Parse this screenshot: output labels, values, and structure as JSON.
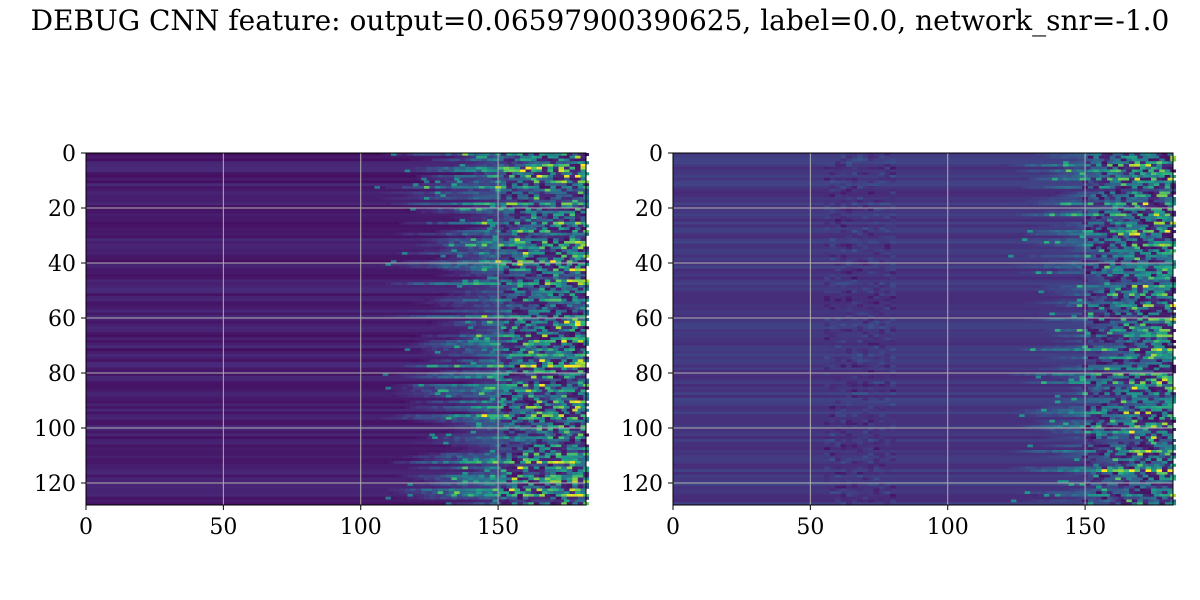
{
  "figure": {
    "title": "DEBUG CNN feature: output=0.06597900390625, label=0.0, network_snr=-1.0"
  },
  "chart_data": [
    {
      "type": "heatmap",
      "title": "",
      "xlabel": "",
      "ylabel": "",
      "xlim": [
        0,
        182
      ],
      "ylim": [
        128,
        0
      ],
      "x_ticks": [
        0,
        50,
        100,
        150
      ],
      "y_ticks": [
        0,
        20,
        40,
        60,
        80,
        100,
        120
      ],
      "grid": true,
      "colormap": "viridis",
      "colors": {
        "low": "#440154",
        "mid": "#21918c",
        "high": "#fde725",
        "grid": "#b0b0b0"
      },
      "pattern": {
        "background_intensity": 0.04,
        "activation_onset_col": 105,
        "active_rows_from_start_col": 150,
        "noise_band_cols": null
      }
    },
    {
      "type": "heatmap",
      "title": "",
      "xlabel": "",
      "ylabel": "",
      "xlim": [
        0,
        182
      ],
      "ylim": [
        128,
        0
      ],
      "x_ticks": [
        0,
        50,
        100,
        150
      ],
      "y_ticks": [
        0,
        20,
        40,
        60,
        80,
        100,
        120
      ],
      "grid": true,
      "colormap": "viridis",
      "colors": {
        "low": "#440154",
        "mid": "#21918c",
        "high": "#fde725",
        "grid": "#b0b0b0"
      },
      "pattern": {
        "background_intensity": 0.12,
        "activation_onset_col": 120,
        "active_rows_from_start_col": 148,
        "noise_band_cols": [
          55,
          80
        ]
      }
    }
  ]
}
